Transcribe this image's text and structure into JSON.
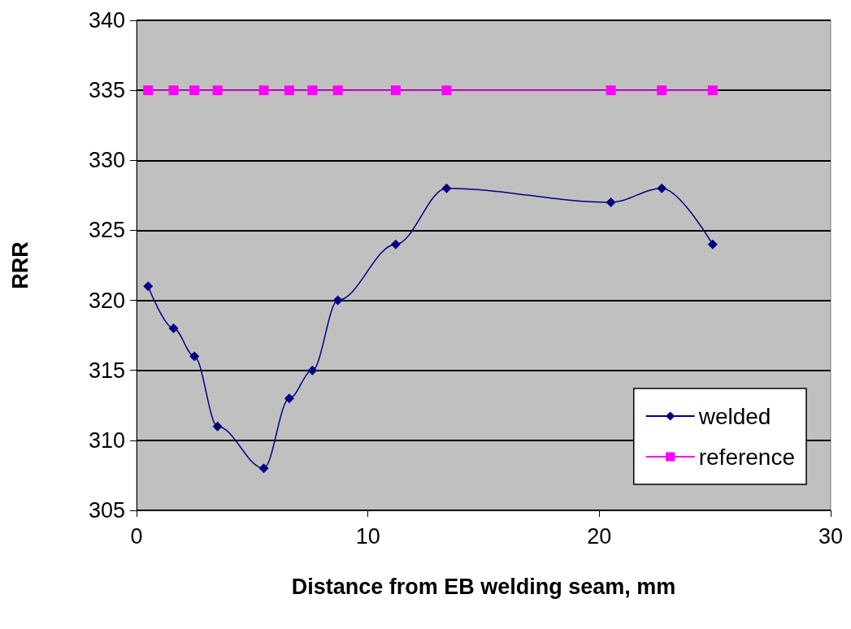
{
  "chart_data": {
    "type": "line",
    "xlabel": "Distance from EB welding seam, mm",
    "ylabel": "RRR",
    "xlim": [
      0,
      30
    ],
    "xticks": [
      0,
      10,
      20,
      30
    ],
    "ylim": [
      305,
      340
    ],
    "yticks": [
      305,
      310,
      315,
      320,
      325,
      330,
      335,
      340
    ],
    "grid": "y",
    "legend": "bottom right",
    "line_style": "solid",
    "series": [
      {
        "name": "welded",
        "color": "#000080",
        "marker": "diamond",
        "x": [
          0.5,
          1.6,
          2.5,
          3.5,
          5.5,
          6.6,
          7.6,
          8.7,
          11.2,
          13.4,
          20.5,
          22.7,
          24.9
        ],
        "values": [
          321,
          318,
          316,
          311,
          308,
          313,
          315,
          320,
          324,
          328,
          327,
          328,
          324
        ]
      },
      {
        "name": "reference",
        "color": "#ff00ff",
        "marker": "square",
        "x": [
          0.5,
          1.6,
          2.5,
          3.5,
          5.5,
          6.6,
          7.6,
          8.7,
          11.2,
          13.4,
          20.5,
          22.7,
          24.9
        ],
        "values": [
          335,
          335,
          335,
          335,
          335,
          335,
          335,
          335,
          335,
          335,
          335,
          335,
          335
        ]
      }
    ]
  }
}
